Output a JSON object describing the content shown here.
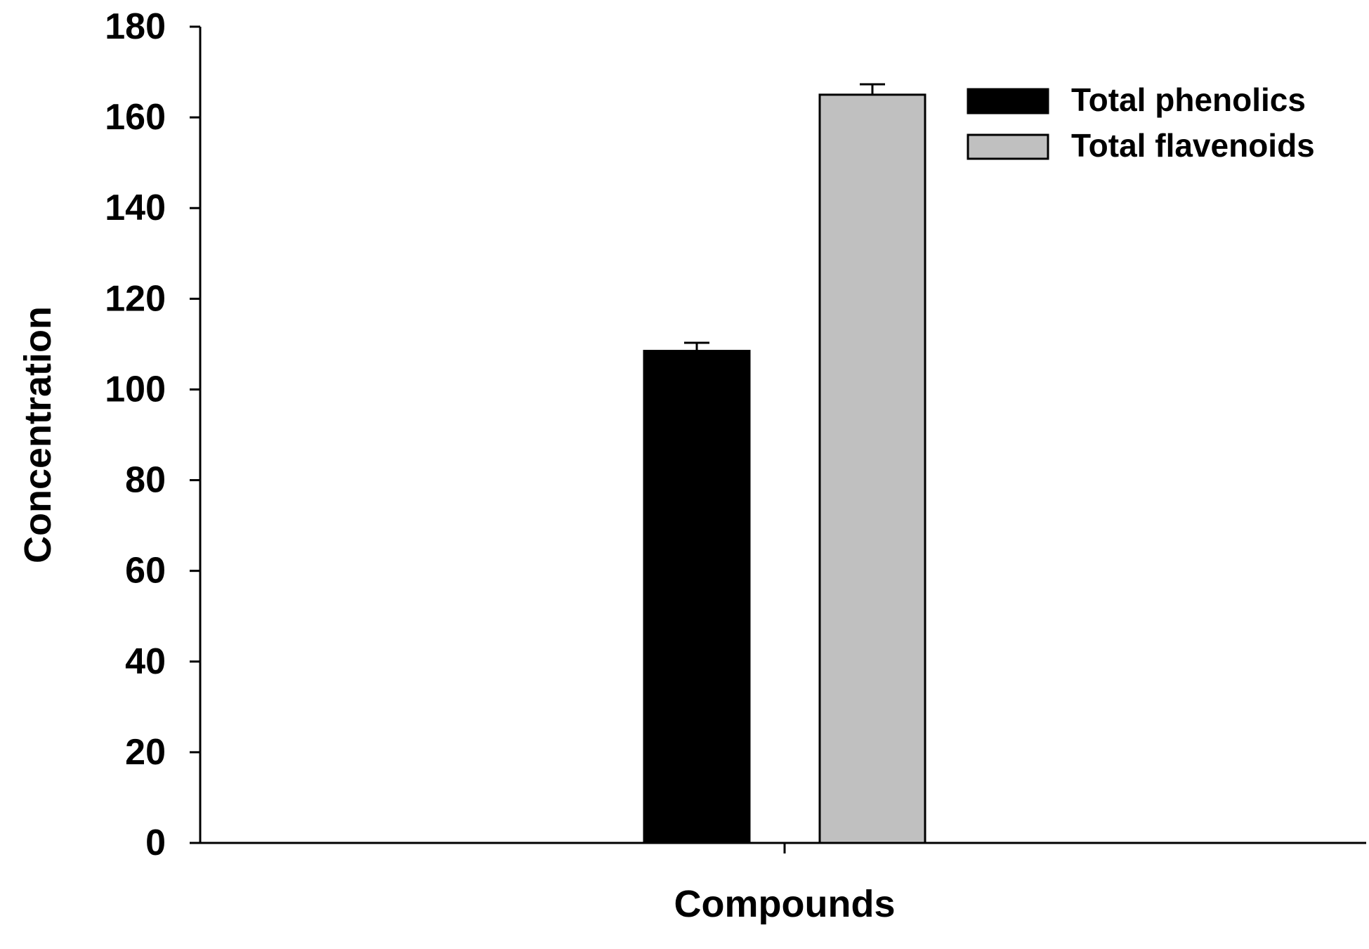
{
  "chart_data": {
    "type": "bar",
    "title": "",
    "xlabel": "Compounds",
    "ylabel": "Concentration",
    "ylim": [
      0,
      180
    ],
    "yticks": [
      0,
      20,
      40,
      60,
      80,
      100,
      120,
      140,
      160,
      180
    ],
    "grid": false,
    "legend_position": "top-right",
    "series": [
      {
        "name": "Total phenolics",
        "value": 108.5,
        "error": 1.8,
        "color": "#000000"
      },
      {
        "name": "Total flavenoids",
        "value": 165,
        "error": 2.3,
        "color": "#c0c0c0"
      }
    ]
  }
}
